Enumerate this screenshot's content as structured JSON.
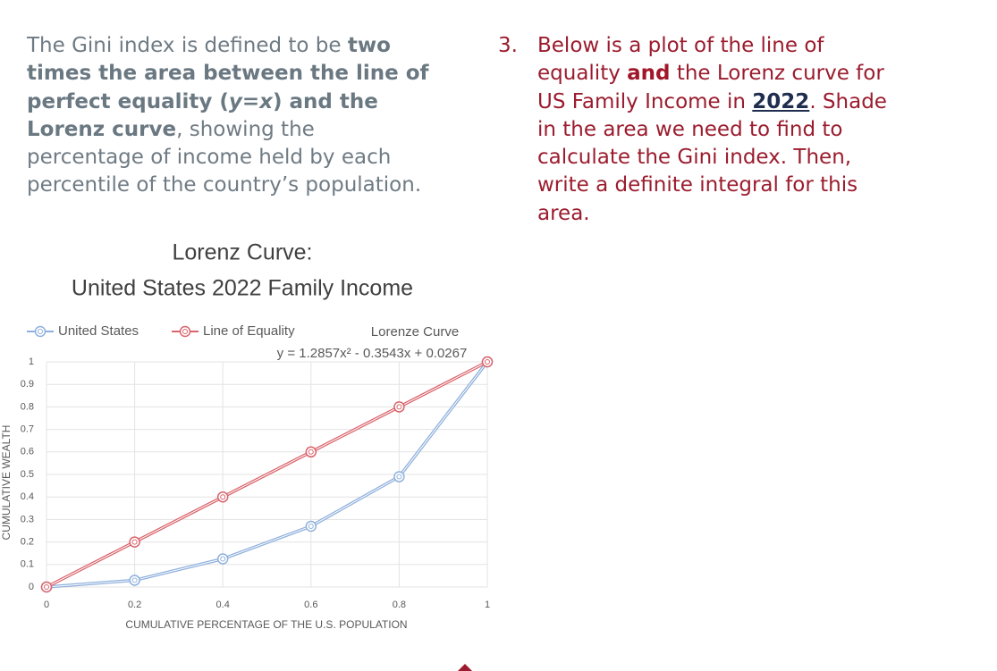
{
  "left_text": {
    "intro": "The Gini index is defined to be",
    "bold_1": "two times the area between the line of perfect equality (",
    "var_y": "y",
    "equals": "=",
    "var_x": "x",
    "bold_2": ") and the Lorenz curve",
    "rest": ", showing the percentage of income held by each percentile of the country’s population."
  },
  "right_text": {
    "number": "3.",
    "part_1": "Below is a plot of the line of equality ",
    "bold": "and",
    "part_2": " the Lorenz curve for US Family Income in ",
    "year": "2022",
    "part_3": ".  Shade in the area we need to find to calculate the Gini index.  Then, write a definite integral for this area."
  },
  "chart_data": {
    "type": "line",
    "title": "Lorenz Curve:",
    "subtitle": "United States 2022 Family Income",
    "x_label": "CUMULATIVE PERCENTAGE OF THE U.S. POPULATION",
    "y_label": "CUMULATIVE WEALTH",
    "trendline_label": "Lorenze Curve",
    "trendline_equation": "y = 1.2857x² - 0.3543x + 0.0267",
    "x": [
      0,
      0.2,
      0.4,
      0.6,
      0.8,
      1
    ],
    "series": [
      {
        "name": "United States",
        "color": "#8fb0dc",
        "values": [
          0,
          0.03,
          0.125,
          0.27,
          0.49,
          1
        ]
      },
      {
        "name": "Line of Equality",
        "color": "#d9646c",
        "values": [
          0,
          0.2,
          0.4,
          0.6,
          0.8,
          1
        ]
      }
    ],
    "xlim": [
      0,
      1
    ],
    "ylim": [
      0,
      1
    ],
    "xticks": [
      0,
      0.2,
      0.4,
      0.6,
      0.8,
      1
    ],
    "yticks": [
      0,
      0.1,
      0.2,
      0.3,
      0.4,
      0.5,
      0.6,
      0.7,
      0.8,
      0.9,
      1
    ],
    "grid": true
  }
}
